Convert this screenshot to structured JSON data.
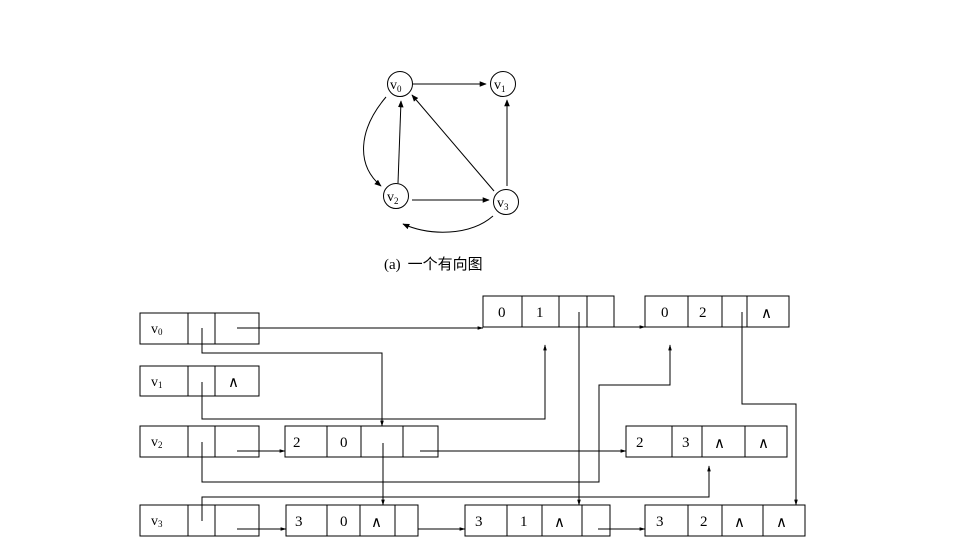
{
  "graph": {
    "vertices": [
      {
        "base": "v",
        "sub": "0"
      },
      {
        "base": "v",
        "sub": "1"
      },
      {
        "base": "v",
        "sub": "2"
      },
      {
        "base": "v",
        "sub": "3"
      }
    ],
    "edges": [
      {
        "from": 0,
        "to": 1
      },
      {
        "from": 0,
        "to": 2
      },
      {
        "from": 2,
        "to": 0
      },
      {
        "from": 2,
        "to": 3
      },
      {
        "from": 3,
        "to": 0
      },
      {
        "from": 3,
        "to": 1
      },
      {
        "from": 3,
        "to": 2
      }
    ]
  },
  "caption_a": {
    "label": "(a)",
    "text": "一个有向图"
  },
  "orthogonal_list": {
    "heads": [
      {
        "base": "v",
        "sub": "0"
      },
      {
        "base": "v",
        "sub": "1"
      },
      {
        "base": "v",
        "sub": "2"
      },
      {
        "base": "v",
        "sub": "3"
      }
    ],
    "null_symbol": "∧",
    "arc_nodes": [
      {
        "tail": "0",
        "head": "1",
        "hlink_null": false,
        "tlink_null": false
      },
      {
        "tail": "0",
        "head": "2",
        "hlink_null": false,
        "tlink_null": true
      },
      {
        "tail": "2",
        "head": "0",
        "hlink_null": false,
        "tlink_null": false
      },
      {
        "tail": "2",
        "head": "3",
        "hlink_null": true,
        "tlink_null": true
      },
      {
        "tail": "3",
        "head": "0",
        "hlink_null": true,
        "tlink_null": false
      },
      {
        "tail": "3",
        "head": "1",
        "hlink_null": true,
        "tlink_null": false
      },
      {
        "tail": "3",
        "head": "2",
        "hlink_null": true,
        "tlink_null": true
      }
    ]
  }
}
